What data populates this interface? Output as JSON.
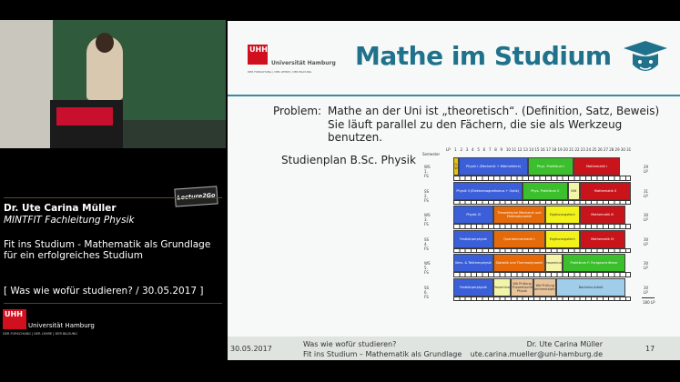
{
  "sidebar": {
    "badge": "Lecture2Go",
    "speaker": "Dr. Ute Carina Müller",
    "role": "MINTFIT Fachleitung Physik",
    "talk_line1": "Fit ins Studium - Mathematik als Grundlage",
    "talk_line2": "für ein erfolgreiches Studium",
    "event": "[ Was wie wofür studieren? / 30.05.2017 ]",
    "logo_mark": "UHH",
    "university": "Universität Hamburg",
    "tagline": "DER FORSCHUNG | DER LEHRE | DER BILDUNG"
  },
  "slide": {
    "logo_mark": "UHH",
    "university": "Universität Hamburg",
    "tagline": "DER FORSCHUNG | DER LEHRE | DER BILDUNG",
    "title": "Mathe im Studium",
    "problem_label": "Problem:",
    "problem_line1": "Mathe an der Uni ist „theoretisch“. (Definition, Satz, Beweis)",
    "problem_line2": "Sie läuft parallel zu den Fächern, die sie als Werkzeug benutzen.",
    "plan_label": "Studienplan B.Sc. Physik",
    "colors": {
      "title": "#20718c",
      "physik": "#3b5fd9",
      "praktikum": "#3cbf2c",
      "mathe": "#c8141a",
      "theorie": "#e56a0a",
      "ergaenzung": "#f2f21a",
      "light": "#f4f4a8",
      "wa": "#e8c49a",
      "bachelor": "#9fcdea",
      "orient": "#e8c010"
    },
    "schedule": {
      "semester_header": "Semester",
      "lp_header": "LP",
      "total": "180 LP",
      "rows": [
        {
          "semester": "WS 1. FS",
          "lp": "29 LP",
          "blocks": [
            [
              "O-W",
              0,
              1,
              "orient"
            ],
            [
              "Physik I (Mechanik + Wärmelehre)",
              1,
              13,
              "physik"
            ],
            [
              "Phys. Praktikum I",
              13,
              21,
              "praktikum"
            ],
            [
              "Mathematik I",
              21,
              29,
              "mathe"
            ]
          ]
        },
        {
          "semester": "SS 2. FS",
          "lp": "31 LP",
          "blocks": [
            [
              "Physik II (Elektromagnetismus + Optik)",
              0,
              12,
              "physik"
            ],
            [
              "Phys. Praktikum II",
              12,
              20,
              "praktikum"
            ],
            [
              "NW",
              20,
              22,
              "light"
            ],
            [
              "Mathematik II",
              22,
              31,
              "mathe"
            ]
          ]
        },
        {
          "semester": "WS 3. FS",
          "lp": "30 LP",
          "blocks": [
            [
              "Physik III",
              0,
              7,
              "physik"
            ],
            [
              "Theoretische Mechanik und Elektrodynamik",
              7,
              16,
              "theorie"
            ],
            [
              "Ergänzungsfach",
              16,
              22,
              "ergaenzung"
            ],
            [
              "Mathematik III",
              22,
              30,
              "mathe"
            ]
          ]
        },
        {
          "semester": "SS 4. FS",
          "lp": "30 LP",
          "blocks": [
            [
              "Festkörperphysik",
              0,
              7,
              "physik"
            ],
            [
              "Quantenmechanik I",
              7,
              16,
              "theorie"
            ],
            [
              "Ergänzungsfach",
              16,
              22,
              "ergaenzung"
            ],
            [
              "Mathematik IV",
              22,
              30,
              "mathe"
            ]
          ]
        },
        {
          "semester": "WS 5. FS",
          "lp": "30 LP",
          "blocks": [
            [
              "Kern- & Teilchenphysik",
              0,
              7,
              "physik"
            ],
            [
              "Statistik und Thermodynamik",
              7,
              16,
              "theorie"
            ],
            [
              "Proseminar",
              16,
              19,
              "light"
            ],
            [
              "Praktikum F: Fortgeschrittene",
              19,
              30,
              "praktikum"
            ]
          ]
        },
        {
          "semester": "SS 6. FS",
          "lp": "30 LP",
          "blocks": [
            [
              "Festkörperphysik",
              0,
              7,
              "physik"
            ],
            [
              "Proseminar",
              7,
              10,
              "light"
            ],
            [
              "WA Prüfung Theoretische Physik",
              10,
              14,
              "wa"
            ],
            [
              "WA Prüfung Experimentalphysik",
              14,
              18,
              "wa"
            ],
            [
              "Bachelor-Arbeit",
              18,
              30,
              "bachelor"
            ]
          ]
        }
      ]
    }
  },
  "footer": {
    "date": "30.05.2017",
    "event": "Was wie wofür studieren?",
    "talk": "Fit ins Studium – Mathematik als Grundlage",
    "author": "Dr. Ute Carina Müller",
    "email": "ute.carina.mueller@uni-hamburg.de",
    "page": "17"
  }
}
